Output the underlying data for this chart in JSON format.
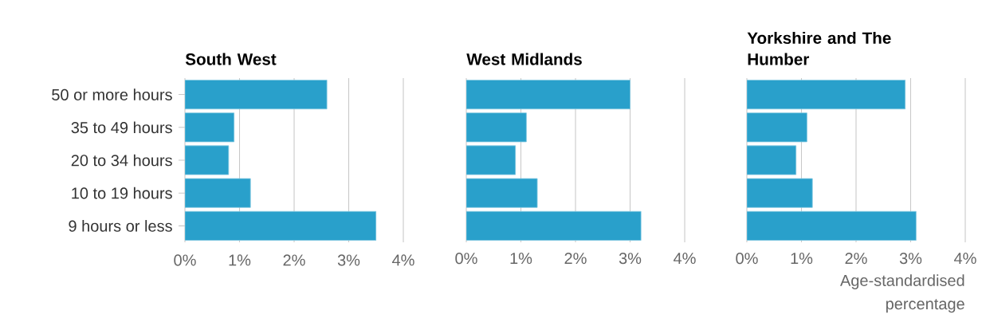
{
  "chart_data": [
    {
      "type": "bar",
      "orientation": "horizontal",
      "title": "South West",
      "categories": [
        "50 or more hours",
        "35 to 49 hours",
        "20 to 34 hours",
        "10 to 19 hours",
        "9 hours or less"
      ],
      "values": [
        2.6,
        0.9,
        0.8,
        1.2,
        3.5
      ],
      "color": "#29a0cb",
      "xlim": [
        0,
        4
      ],
      "xticks": [
        {
          "value": 0,
          "label": "0%"
        },
        {
          "value": 1,
          "label": "1%"
        },
        {
          "value": 2,
          "label": "2%"
        },
        {
          "value": 3,
          "label": "3%"
        },
        {
          "value": 4,
          "label": "4%"
        }
      ],
      "grid": "x"
    },
    {
      "type": "bar",
      "orientation": "horizontal",
      "title": "West Midlands",
      "categories": [
        null,
        null,
        null,
        null,
        null
      ],
      "values": [
        3.0,
        1.1,
        0.9,
        1.3,
        3.2
      ],
      "color": "#29a0cb",
      "xlim": [
        0,
        4
      ],
      "xticks": [
        {
          "value": 0,
          "label": "0%"
        },
        {
          "value": 1,
          "label": "1%"
        },
        {
          "value": 2,
          "label": "2%"
        },
        {
          "value": 3,
          "label": "3%"
        },
        {
          "value": 4,
          "label": "4%"
        }
      ],
      "grid": "x",
      "tick_labels": "x"
    },
    {
      "type": "bar",
      "orientation": "horizontal",
      "title": "Yorkshire and The Humber",
      "xlabel": "Age-standardised percentage",
      "categories": [
        null,
        null,
        null,
        null,
        null
      ],
      "values": [
        2.9,
        1.1,
        0.9,
        1.2,
        3.1
      ],
      "color": "#29a0cb",
      "xlim": [
        0,
        4
      ],
      "xticks": [
        {
          "value": 0,
          "label": "0%"
        },
        {
          "value": 1,
          "label": "1%"
        },
        {
          "value": 2,
          "label": "2%"
        },
        {
          "value": 3,
          "label": "3%"
        },
        {
          "value": 4,
          "label": "4%"
        }
      ],
      "grid": "x",
      "tick_labels": "x"
    }
  ]
}
